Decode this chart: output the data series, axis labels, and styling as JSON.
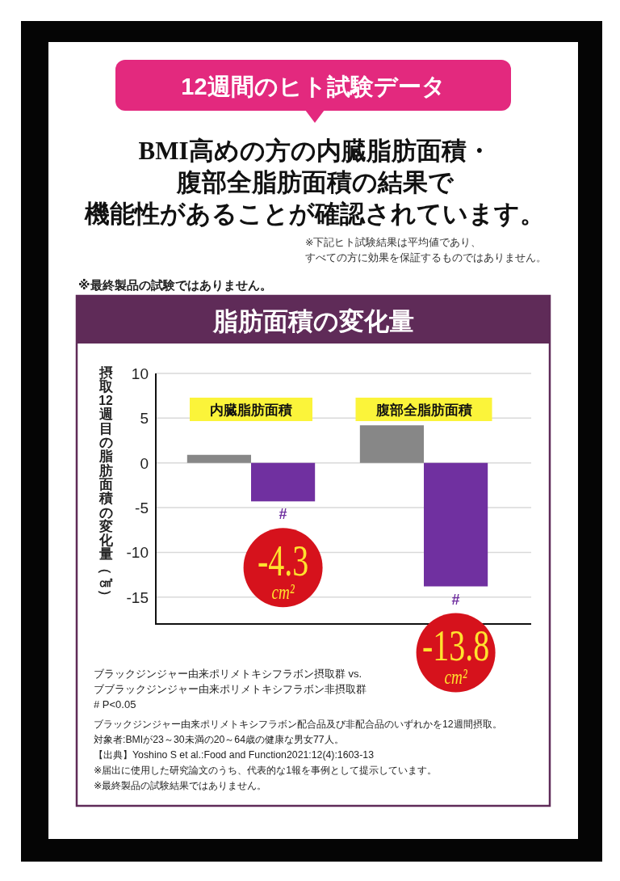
{
  "chart_data": {
    "type": "bar",
    "title": "脂肪面積の変化量",
    "ylabel": "摂取12週目の脂肪面積の変化量（㎠）",
    "categories": [
      "内臓脂肪面積",
      "腹部全脂肪面積"
    ],
    "series": [
      {
        "color": "#878787",
        "values": [
          0.9,
          4.2
        ]
      },
      {
        "color": "#7030a0",
        "values": [
          -4.3,
          -13.8
        ],
        "value_labels": [
          "-4.3\ncm²",
          "-13.8\ncm²"
        ]
      }
    ],
    "ylim": [
      -18,
      10
    ],
    "yticks": [
      10,
      5,
      0,
      -5,
      -10,
      -15
    ],
    "grid": "y",
    "annotations": [
      "12週間のヒト試験データ",
      "BMI高めの方の内臓脂肪面積・",
      "腹部全脂肪面積の結果で",
      "機能性があることが確認されています。",
      "※下記ヒト試験結果は平均値であり、",
      "すべての方に効果を保証するものではありません。",
      "※最終製品の試験ではありません。",
      "ブラックジンジャー由来ポリメトキシフラボン摂取群 vs.\nブブラックジンジャー由来ポリメトキシフラボン非摂取群\n# P<0.05",
      "ブラックジンジャー由来ポリメトキシフラボン配合品及び非配合品のいずれかを12週間摂取。",
      "対象者:BMIが23～30未満の20～64歳の健康な男女77人。",
      "【出典】Yoshino S et al.:Food and Function2021:12(4):1603-13",
      "※届出に使用した研究論文のうち、代表的な1報を事例として提示しています。",
      "※最終製品の試験結果ではありません。",
      {
        "text": "#",
        "x": "内臓脂肪面積",
        "y": -4.3
      },
      {
        "text": "#",
        "x": "腹部全脂肪面積",
        "y": -13.8
      }
    ]
  }
}
